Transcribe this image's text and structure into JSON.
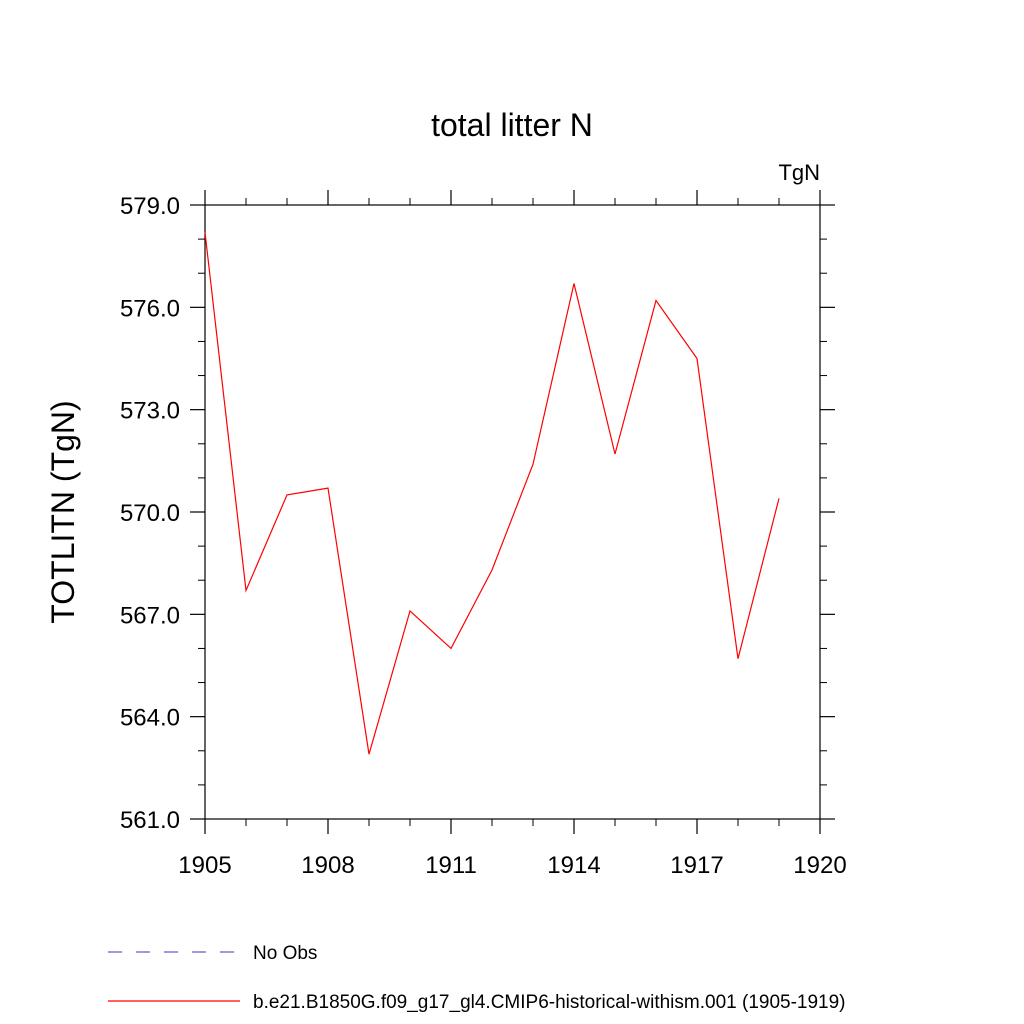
{
  "chart_data": {
    "type": "line",
    "title": "total litter N",
    "units_label": "TgN",
    "ylabel": "TOTLITN  (TgN)",
    "xlabel": "",
    "xlim": [
      1905,
      1920
    ],
    "ylim": [
      561.0,
      579.0
    ],
    "x_ticks": [
      1905,
      1908,
      1911,
      1914,
      1917,
      1920
    ],
    "x_tick_labels": [
      "1905",
      "1908",
      "1911",
      "1914",
      "1917",
      "1920"
    ],
    "y_ticks": [
      561.0,
      564.0,
      567.0,
      570.0,
      573.0,
      576.0,
      579.0
    ],
    "y_tick_labels": [
      "561.0",
      "564.0",
      "567.0",
      "570.0",
      "573.0",
      "576.0",
      "579.0"
    ],
    "grid": false,
    "legend_position": "bottom-left",
    "series": [
      {
        "name": "No Obs",
        "color": "#6a5acd",
        "dash": "dashed",
        "x": [],
        "values": []
      },
      {
        "name": "b.e21.B1850G.f09_g17_gl4.CMIP6-historical-withism.001 (1905-1919)",
        "color": "#ff0000",
        "dash": "solid",
        "x": [
          1905,
          1906,
          1907,
          1908,
          1909,
          1910,
          1911,
          1912,
          1913,
          1914,
          1915,
          1916,
          1917,
          1918,
          1919
        ],
        "values": [
          578.2,
          567.7,
          570.5,
          570.7,
          562.9,
          567.1,
          566.0,
          568.3,
          571.4,
          576.7,
          571.7,
          576.2,
          574.5,
          565.7,
          570.4
        ]
      }
    ]
  }
}
